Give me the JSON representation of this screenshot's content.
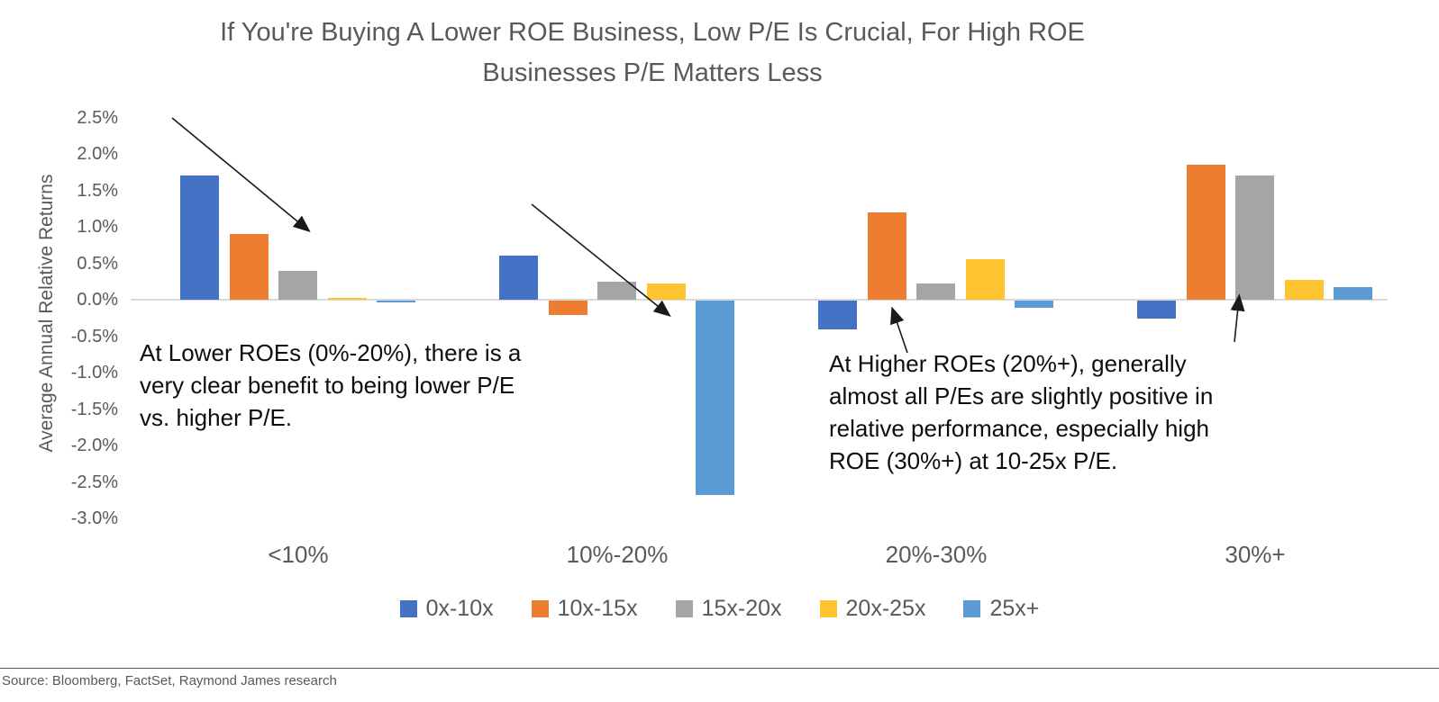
{
  "title": {
    "line1": "If You're Buying A Lower ROE Business, Low P/E Is Crucial, For High ROE",
    "line2": "Businesses P/E Matters Less"
  },
  "y_axis": {
    "title": "Average Annual Relative Returns",
    "ticks": [
      "2.5%",
      "2.0%",
      "1.5%",
      "1.0%",
      "0.5%",
      "0.0%",
      "-0.5%",
      "-1.0%",
      "-1.5%",
      "-2.0%",
      "-2.5%",
      "-3.0%"
    ]
  },
  "chart_data": {
    "type": "bar",
    "title": "If You're Buying A Lower ROE Business, Low P/E Is Crucial, For High ROE Businesses P/E Matters Less",
    "xlabel": "",
    "ylabel": "Average Annual Relative Returns",
    "ylim": [
      -3.0,
      2.5
    ],
    "grid": false,
    "legend_position": "bottom",
    "categories": [
      "<10%",
      "10%-20%",
      "20%-30%",
      "30%+"
    ],
    "series": [
      {
        "name": "0x-10x",
        "color": "#4472C4",
        "values": [
          1.7,
          0.6,
          -0.4,
          -0.25
        ]
      },
      {
        "name": "10x-15x",
        "color": "#ED7D31",
        "values": [
          0.9,
          -0.2,
          1.2,
          1.85
        ]
      },
      {
        "name": "15x-20x",
        "color": "#A5A5A5",
        "values": [
          0.4,
          0.25,
          0.22,
          1.7
        ]
      },
      {
        "name": "20x-25x",
        "color": "#FFC431",
        "values": [
          0.03,
          0.22,
          0.55,
          0.27
        ]
      },
      {
        "name": "25x+",
        "color": "#5B9BD5",
        "values": [
          -0.02,
          -2.67,
          -0.1,
          0.17
        ]
      }
    ]
  },
  "annotations": {
    "left": "At Lower ROEs (0%-20%), there is a very clear benefit to being lower P/E vs. higher P/E.",
    "right": "At Higher ROEs (20%+), generally almost all P/Es are slightly positive in relative performance, especially high ROE (30%+) at 10-25x P/E."
  },
  "source": "Source: Bloomberg, FactSet, Raymond James research"
}
